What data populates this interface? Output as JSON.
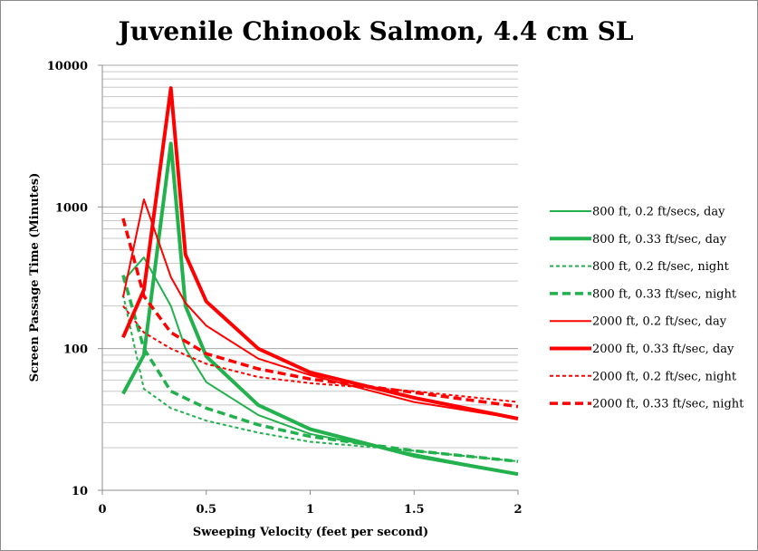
{
  "chart_data": {
    "type": "line",
    "title": "Juvenile Chinook Salmon, 4.4 cm SL",
    "xlabel": "Sweeping Velocity (feet per second)",
    "ylabel": "Screen Passage Time (Minutes)",
    "xlim": [
      0,
      2
    ],
    "ylim": [
      10,
      10000
    ],
    "yscale": "log",
    "x_ticks": [
      "0",
      "0.5",
      "1",
      "1.5",
      "2"
    ],
    "y_ticks": [
      "10",
      "100",
      "1000",
      "10000"
    ],
    "grid": "horizontal, major and minor",
    "legend_position": "right",
    "series": [
      {
        "name": "800 ft, 0.2 ft/secs, day",
        "color": "#22b14c",
        "width": 2,
        "dash": "",
        "x": [
          0.1,
          0.2,
          0.33,
          0.4,
          0.5,
          0.75,
          1,
          1.5,
          2
        ],
        "y": [
          300,
          440,
          200,
          100,
          58,
          34,
          25,
          18,
          13
        ]
      },
      {
        "name": "800 ft, 0.33 ft/sec, day",
        "color": "#22b14c",
        "width": 4,
        "dash": "",
        "x": [
          0.1,
          0.2,
          0.33,
          0.4,
          0.5,
          0.75,
          1,
          1.5,
          2
        ],
        "y": [
          48,
          90,
          2800,
          200,
          88,
          40,
          27,
          17.5,
          13
        ]
      },
      {
        "name": "800 ft, 0.2 ft/sec, night",
        "color": "#22b14c",
        "width": 2,
        "dash": "4,3",
        "x": [
          0.1,
          0.2,
          0.33,
          0.5,
          0.75,
          1,
          1.5,
          2
        ],
        "y": [
          240,
          52,
          38,
          31,
          25.5,
          22,
          19,
          16
        ]
      },
      {
        "name": "800 ft, 0.33 ft/sec, night",
        "color": "#22b14c",
        "width": 3.5,
        "dash": "9,5",
        "x": [
          0.1,
          0.2,
          0.33,
          0.5,
          0.75,
          1,
          1.5,
          2
        ],
        "y": [
          330,
          100,
          50,
          38,
          29,
          24,
          19,
          16
        ]
      },
      {
        "name": "2000 ft, 0.2 ft/sec, day",
        "color": "#ff0000",
        "width": 2,
        "dash": "",
        "x": [
          0.1,
          0.2,
          0.33,
          0.4,
          0.5,
          0.75,
          1,
          1.5,
          2
        ],
        "y": [
          230,
          1130,
          320,
          210,
          145,
          85,
          65,
          42,
          32
        ]
      },
      {
        "name": "2000 ft, 0.33 ft/sec, day",
        "color": "#ff0000",
        "width": 4,
        "dash": "",
        "x": [
          0.1,
          0.2,
          0.33,
          0.4,
          0.5,
          0.75,
          1,
          1.5,
          2
        ],
        "y": [
          120,
          260,
          6900,
          460,
          215,
          100,
          68,
          45,
          32
        ]
      },
      {
        "name": "2000 ft, 0.2 ft/sec, night",
        "color": "#ff0000",
        "width": 2,
        "dash": "4,3",
        "x": [
          0.1,
          0.2,
          0.33,
          0.5,
          0.75,
          1,
          1.5,
          2
        ],
        "y": [
          200,
          130,
          100,
          78,
          63,
          57,
          50,
          42
        ]
      },
      {
        "name": "2000 ft, 0.33 ft/sec, night",
        "color": "#ff0000",
        "width": 3.5,
        "dash": "9,5",
        "x": [
          0.1,
          0.2,
          0.33,
          0.5,
          0.75,
          1,
          1.5,
          2
        ],
        "y": [
          830,
          235,
          130,
          92,
          72,
          61,
          49,
          39
        ]
      }
    ]
  }
}
